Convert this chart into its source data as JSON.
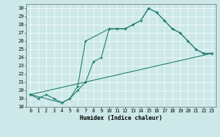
{
  "xlabel": "Humidex (Indice chaleur)",
  "bg_color": "#cce8e8",
  "line_color": "#1a7a6a",
  "xlim": [
    -0.5,
    23.5
  ],
  "ylim": [
    18,
    30.5
  ],
  "xticks": [
    0,
    1,
    2,
    3,
    4,
    5,
    6,
    7,
    8,
    9,
    10,
    11,
    12,
    13,
    14,
    15,
    16,
    17,
    18,
    19,
    20,
    21,
    22,
    23
  ],
  "yticks": [
    18,
    19,
    20,
    21,
    22,
    23,
    24,
    25,
    26,
    27,
    28,
    29,
    30
  ],
  "line1_x": [
    0,
    1,
    2,
    3,
    4,
    5,
    6,
    7,
    8,
    9,
    10,
    11,
    12,
    13,
    14,
    15,
    16,
    17,
    18,
    19,
    20,
    21,
    22,
    23
  ],
  "line1_y": [
    19.5,
    19.0,
    19.5,
    19.0,
    18.5,
    19.0,
    20.0,
    21.0,
    23.5,
    24.0,
    27.5,
    27.5,
    27.5,
    28.0,
    28.5,
    30.0,
    29.5,
    28.5,
    27.5,
    27.0,
    26.0,
    25.0,
    24.5,
    24.5
  ],
  "line2_x": [
    0,
    23
  ],
  "line2_y": [
    19.5,
    24.5
  ],
  "line3_x": [
    0,
    4,
    5,
    6,
    7,
    10,
    11,
    12,
    13,
    14,
    15,
    16,
    17,
    18,
    19,
    20,
    21,
    22,
    23
  ],
  "line3_y": [
    19.5,
    18.5,
    19.0,
    20.5,
    26.0,
    27.5,
    27.5,
    27.5,
    28.0,
    28.5,
    30.0,
    29.5,
    28.5,
    27.5,
    27.0,
    26.0,
    25.0,
    24.5,
    24.5
  ]
}
